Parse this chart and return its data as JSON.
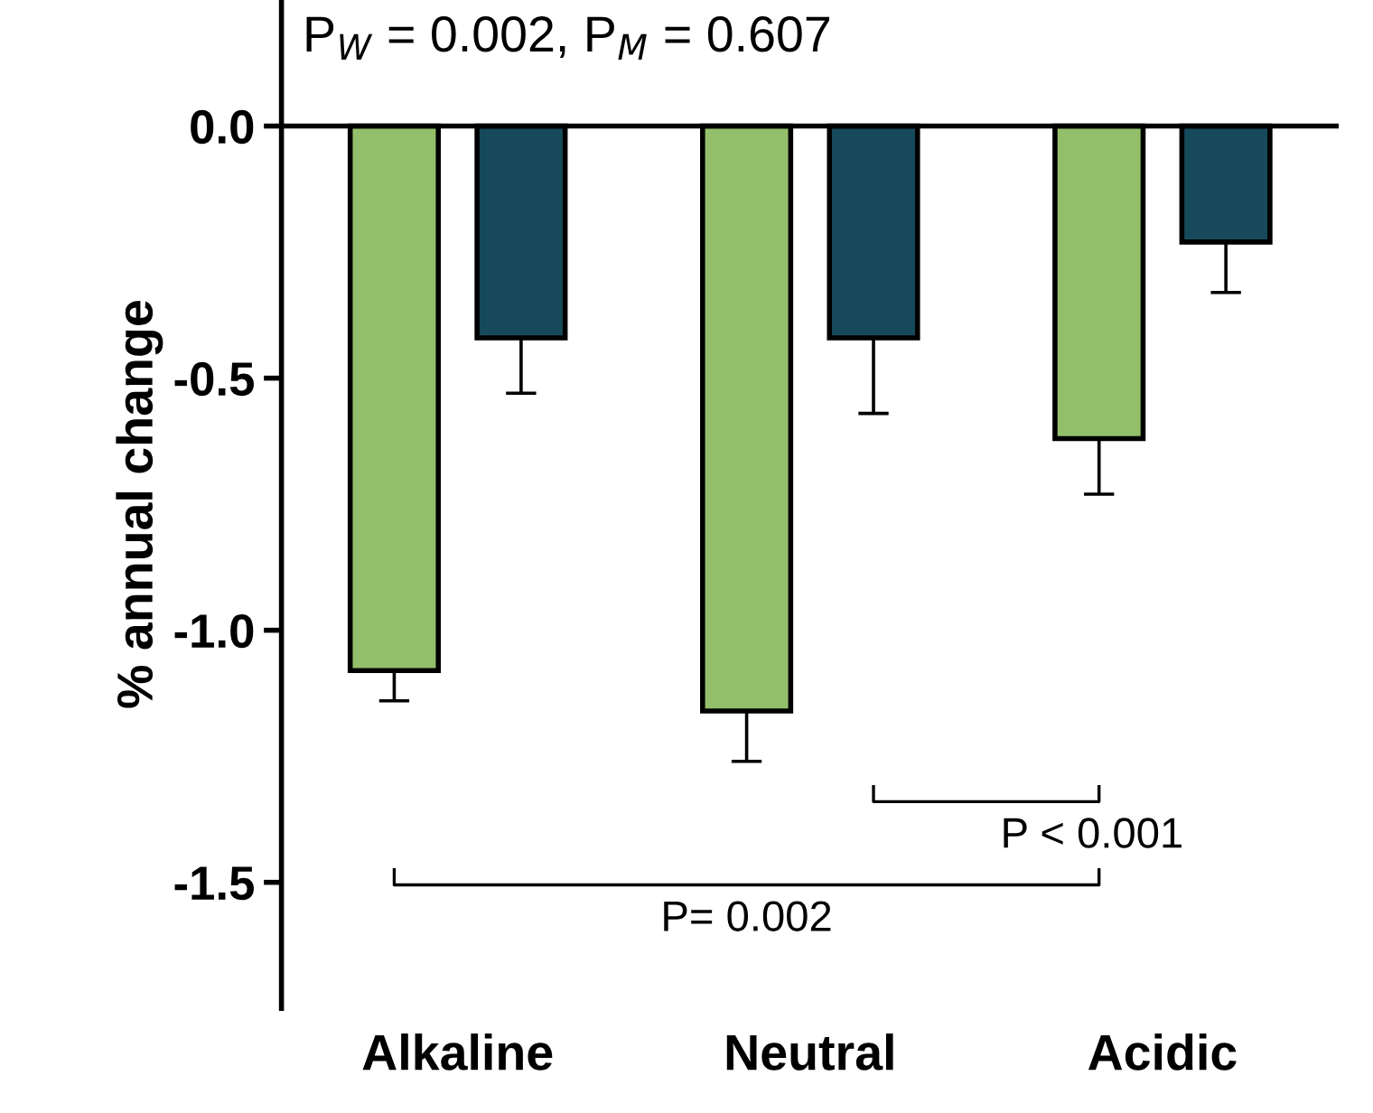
{
  "chart_data": {
    "type": "bar",
    "ylabel": "% annual change",
    "categories": [
      "Alkaline",
      "Neutral",
      "Acidic"
    ],
    "series": [
      {
        "color": "#93bf6b",
        "values": [
          -1.08,
          -1.16,
          -0.62
        ],
        "errors": [
          [
            -1.14,
            -1.08
          ],
          [
            -1.26,
            -1.16
          ],
          [
            -0.73,
            -0.62
          ]
        ]
      },
      {
        "color": "#16495a",
        "values": [
          -0.42,
          -0.42,
          -0.23
        ],
        "errors": [
          [
            -0.53,
            -0.42
          ],
          [
            -0.57,
            -0.42
          ],
          [
            -0.33,
            -0.23
          ]
        ]
      }
    ],
    "ylim": [
      -1.75,
      0.25
    ],
    "yticks": [
      {
        "value": 0,
        "label": "0.0"
      },
      -0.5,
      {
        "value": -1,
        "label": "-1.0"
      },
      -1.5
    ],
    "ref_lines": [
      {
        "axis": "y",
        "value": 0,
        "color": "#000000"
      }
    ],
    "annotations": [
      "P$_{W}$ = 0.002, P$_{M}$ = 0.607",
      "P < 0.001",
      "P= 0.002"
    ],
    "grid": false,
    "legend": false
  }
}
